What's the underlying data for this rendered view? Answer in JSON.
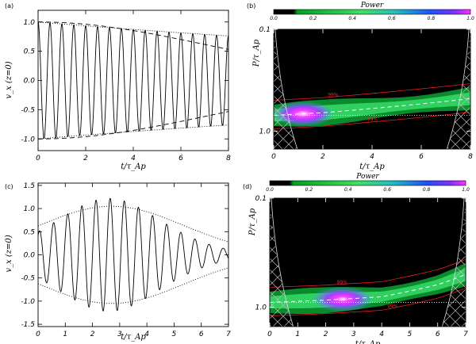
{
  "chart_data": [
    {
      "panel": "(a)",
      "type": "line",
      "xlabel": "t/τ_Ap",
      "ylabel": "v_x (z=0)",
      "xlim": [
        0,
        8
      ],
      "ylim": [
        -1.2,
        1.2
      ],
      "xticks": [
        "0",
        "2",
        "4",
        "6",
        "8"
      ],
      "yticks": [
        "1.0",
        "0.5",
        "0.0",
        "-0.5",
        "-1.0"
      ],
      "series": [
        {
          "name": "signal",
          "style": "solid",
          "period": 0.5,
          "phase": 0.0,
          "envelope": "exp(-0.034 t)",
          "amplitude": 1.0,
          "start_value": 1.0
        },
        {
          "name": "envelope",
          "style": "dotted",
          "formula": "±exp(-0.034 t)"
        },
        {
          "name": "gaussian envelope",
          "style": "dashed",
          "formula": "±exp(-0.0099 t^2)"
        }
      ]
    },
    {
      "panel": "(b)",
      "type": "heatmap",
      "title": "Power",
      "xlabel": "t/τ_Ap",
      "ylabel": "P/τ_Ap",
      "xlim": [
        0,
        8
      ],
      "ylim": [
        0.1,
        1.5
      ],
      "xticks": [
        "0",
        "2",
        "4",
        "6",
        "8"
      ],
      "yticks": [
        "0.1",
        "1.0"
      ],
      "colorbar_ticks": [
        "0.0",
        "0.2",
        "0.4",
        "0.6",
        "0.8",
        "1.0"
      ],
      "contour_label": "99%",
      "ridge": {
        "t": [
          0,
          2,
          4,
          6,
          8
        ],
        "P": [
          0.7,
          0.66,
          0.6,
          0.54,
          0.48
        ]
      },
      "reference_period": 0.7,
      "peak_time": 1.2
    },
    {
      "panel": "(c)",
      "type": "line",
      "xlabel": "t/τ_Ap",
      "ylabel": "v_x (z=0)",
      "xlim": [
        0,
        7
      ],
      "ylim": [
        -1.55,
        1.55
      ],
      "xticks": [
        "0",
        "1",
        "2",
        "3",
        "4",
        "5",
        "6",
        "7"
      ],
      "yticks": [
        "1.5",
        "1.0",
        "0.5",
        "0.0",
        "-0.5",
        "-1.0",
        "-1.5"
      ],
      "series": [
        {
          "name": "signal",
          "style": "solid",
          "period": 0.52,
          "envelope": "1.2 exp(-(t-2.6)^2/9)"
        },
        {
          "name": "envelope",
          "style": "dotted",
          "formula": "±1.05 exp(-(t-2.7)^2/14)"
        }
      ]
    },
    {
      "panel": "(d)",
      "type": "heatmap",
      "title": "Power",
      "xlabel": "t/τ_Ap",
      "ylabel": "P/τ_Ap",
      "xlim": [
        0,
        7
      ],
      "ylim": [
        0.1,
        1.5
      ],
      "xticks": [
        "0",
        "1",
        "2",
        "3",
        "4",
        "5",
        "6",
        "7"
      ],
      "yticks": [
        "0.1",
        "1.0"
      ],
      "colorbar_ticks": [
        "0.0",
        "0.2",
        "0.4",
        "0.6",
        "0.8",
        "1.0"
      ],
      "contour_label": "99%",
      "ridge": {
        "t": [
          0,
          2,
          4,
          6,
          7
        ],
        "P": [
          0.9,
          0.86,
          0.8,
          0.62,
          0.5
        ]
      },
      "reference_period": 0.9,
      "peak_time": 2.6
    }
  ]
}
